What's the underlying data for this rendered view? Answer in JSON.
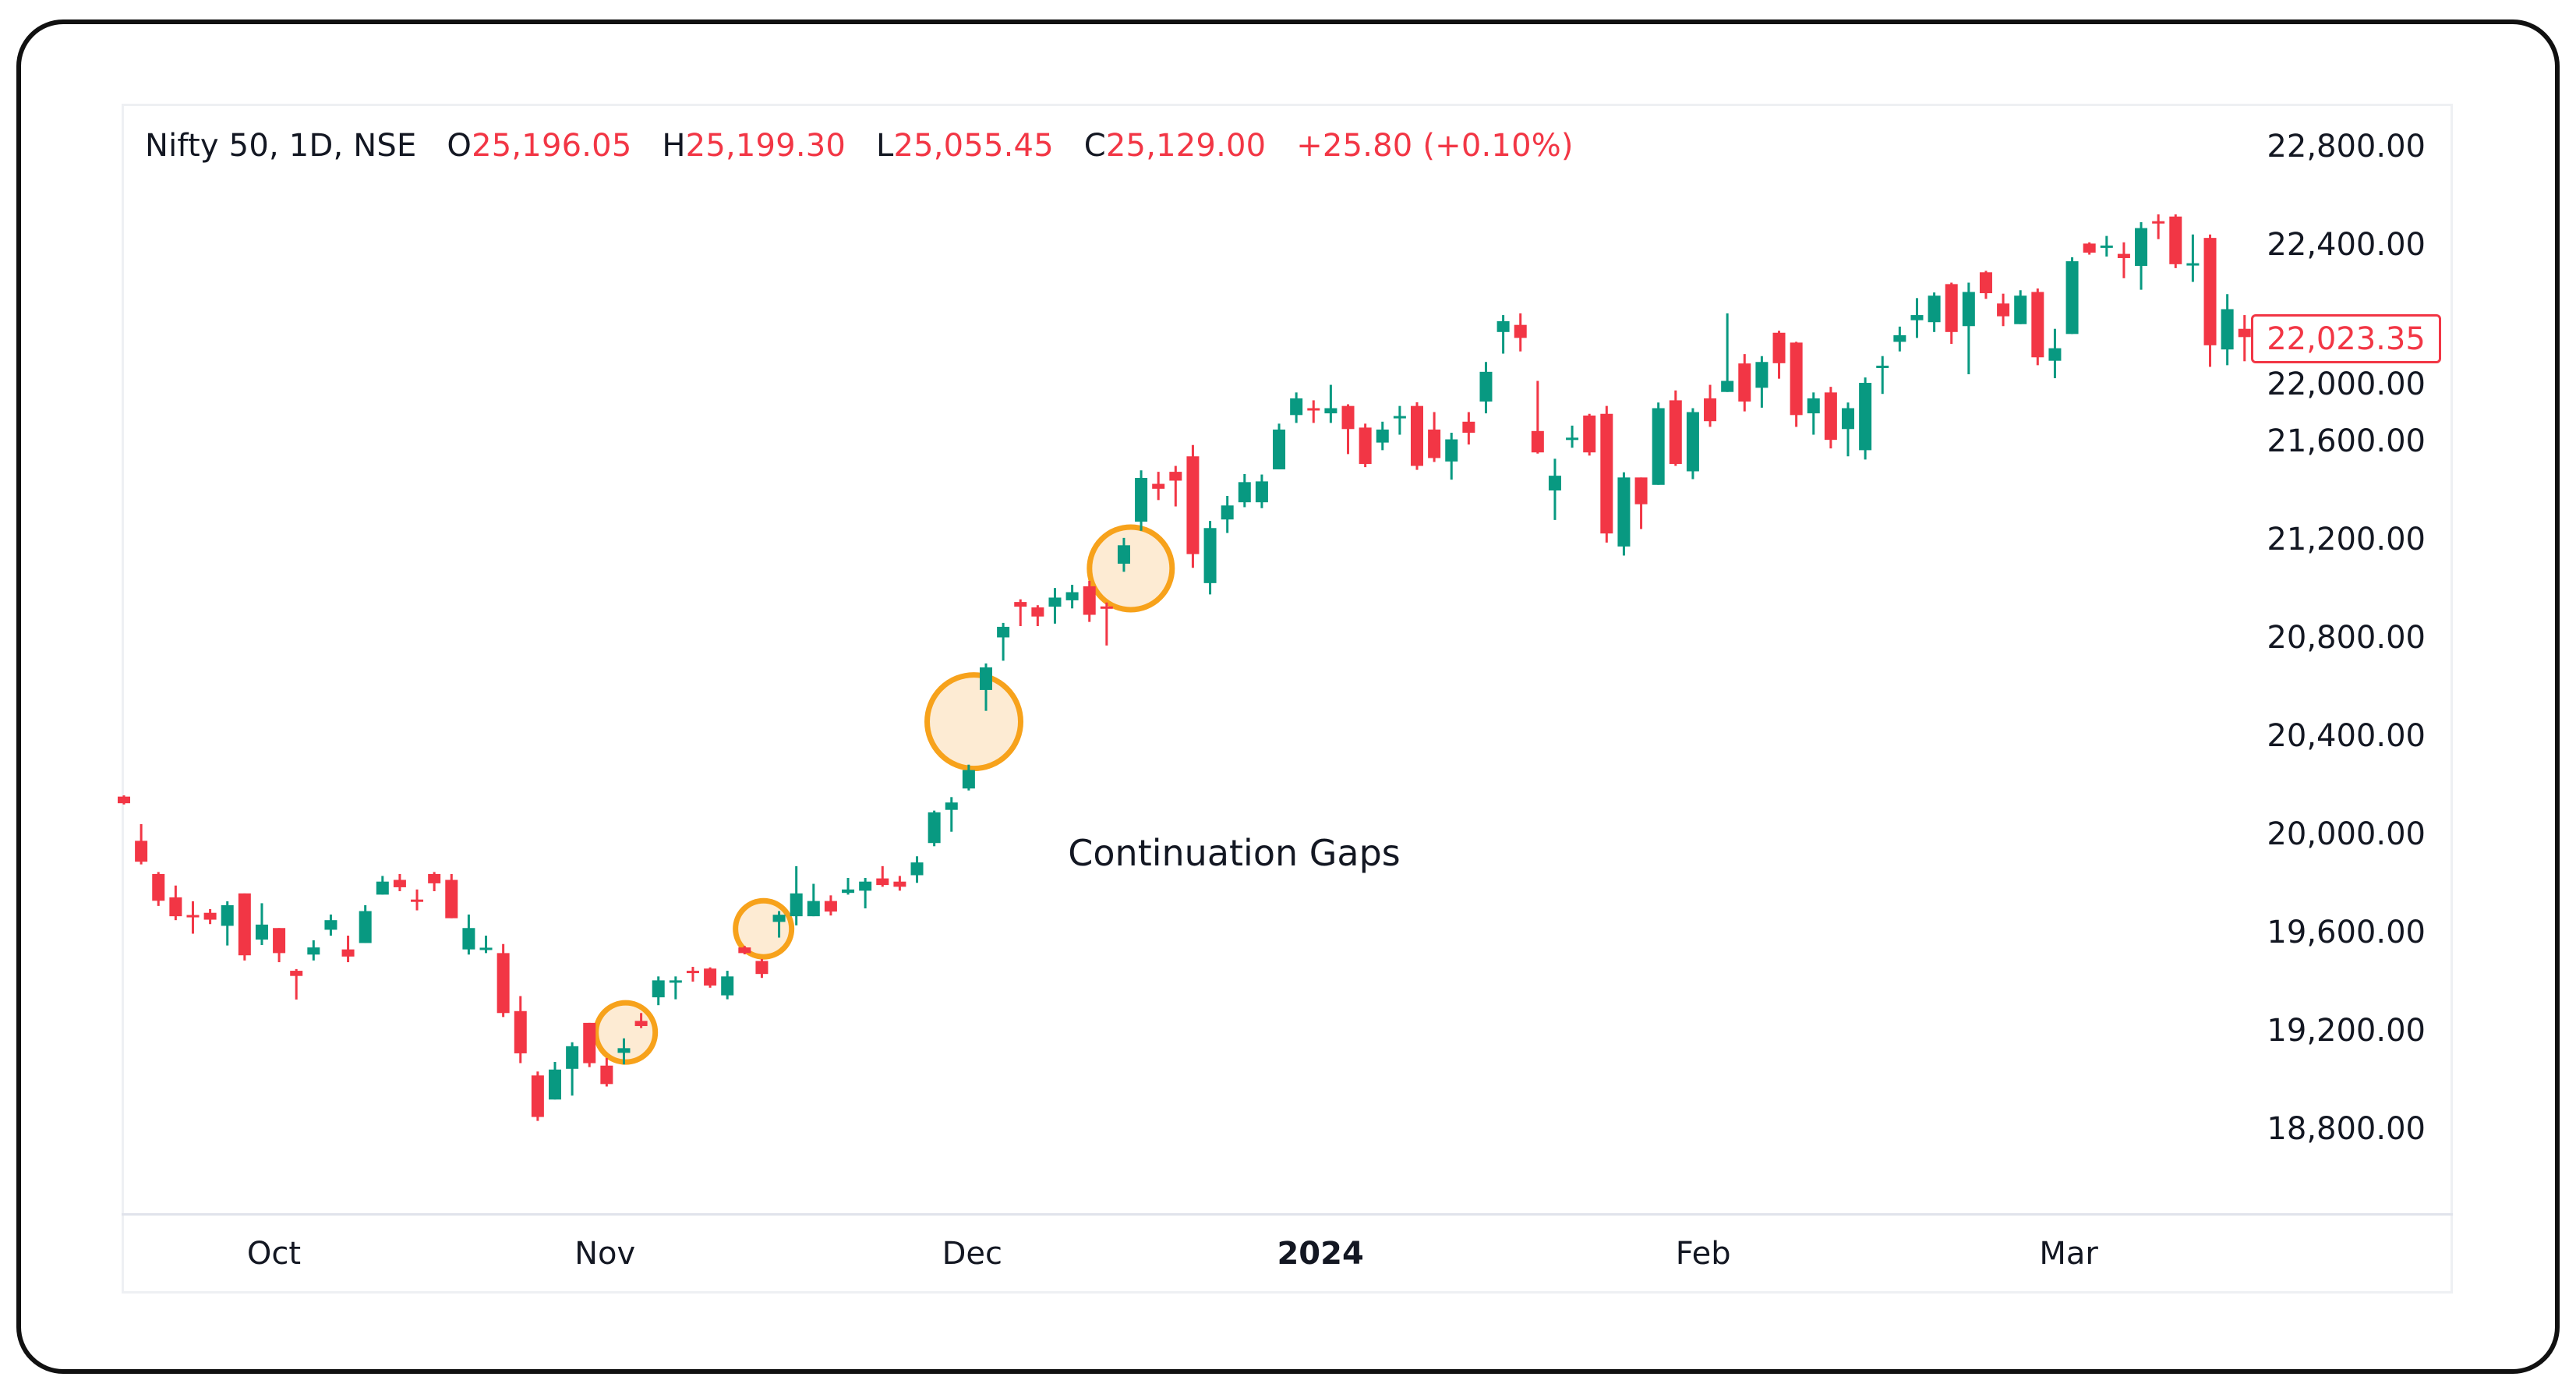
{
  "header": {
    "symbol": "Nifty 50, 1D, NSE",
    "open_label": "O",
    "open": "25,196.05",
    "high_label": "H",
    "high": "25,199.30",
    "low_label": "L",
    "low": "25,055.45",
    "close_label": "C",
    "close": "25,129.00",
    "change": "+25.80 (+0.10%)"
  },
  "last_price_label": "22,023.35",
  "colors": {
    "up": "#089981",
    "down": "#f23645",
    "highlight_fill": "#fdebd3",
    "highlight_stroke": "#f7a21b",
    "text": "#131722"
  },
  "chart_data": {
    "type": "candlestick",
    "title": "",
    "ylim": [
      18800,
      22800
    ],
    "y_ticks": [
      "22,800.00",
      "22,400.00",
      "22,000.00",
      "21,600.00",
      "21,200.00",
      "20,800.00",
      "20,400.00",
      "20,000.00",
      "19,600.00",
      "19,200.00",
      "18,800.00"
    ],
    "y_tick_values": [
      22800,
      22400,
      22000,
      21600,
      21200,
      20800,
      20400,
      20000,
      19600,
      19200,
      18800
    ],
    "x_ticks": [
      {
        "label": "Oct",
        "index": 8.7,
        "bold": false
      },
      {
        "label": "Nov",
        "index": 27.9,
        "bold": false
      },
      {
        "label": "Dec",
        "index": 49.2,
        "bold": false
      },
      {
        "label": "2024",
        "index": 69.4,
        "bold": true
      },
      {
        "label": "Feb",
        "index": 91.6,
        "bold": false
      },
      {
        "label": "Mar",
        "index": 112.8,
        "bold": false
      }
    ],
    "grid": false,
    "legend": "none",
    "ohlc_columns": [
      "open",
      "high",
      "low",
      "close"
    ],
    "candles": [
      [
        20153,
        20158,
        20121,
        20126
      ],
      [
        19973,
        20041,
        19877,
        19888
      ],
      [
        19838,
        19846,
        19708,
        19729
      ],
      [
        19743,
        19791,
        19650,
        19666
      ],
      [
        19671,
        19727,
        19595,
        19669
      ],
      [
        19680,
        19695,
        19634,
        19652
      ],
      [
        19627,
        19727,
        19547,
        19711
      ],
      [
        19759,
        19759,
        19486,
        19507
      ],
      [
        19571,
        19719,
        19549,
        19632
      ],
      [
        19618,
        19618,
        19479,
        19516
      ],
      [
        19444,
        19451,
        19327,
        19423
      ],
      [
        19510,
        19568,
        19486,
        19539
      ],
      [
        19611,
        19673,
        19587,
        19650
      ],
      [
        19531,
        19587,
        19479,
        19502
      ],
      [
        19557,
        19711,
        19557,
        19687
      ],
      [
        19754,
        19830,
        19754,
        19807
      ],
      [
        19814,
        19838,
        19768,
        19784
      ],
      [
        19734,
        19775,
        19690,
        19732
      ],
      [
        19838,
        19846,
        19768,
        19800
      ],
      [
        19814,
        19838,
        19658,
        19658
      ],
      [
        19531,
        19673,
        19510,
        19618
      ],
      [
        19536,
        19587,
        19516,
        19538
      ],
      [
        19516,
        19553,
        19256,
        19272
      ],
      [
        19280,
        19341,
        19068,
        19108
      ],
      [
        19018,
        19034,
        18833,
        18849
      ],
      [
        18920,
        19073,
        18920,
        19042
      ],
      [
        19045,
        19153,
        18936,
        19137
      ],
      [
        19232,
        19232,
        19052,
        19068
      ],
      [
        19058,
        19089,
        18973,
        18983
      ],
      [
        19110,
        19169,
        19063,
        19129
      ],
      [
        19240,
        19272,
        19211,
        19219
      ],
      [
        19336,
        19421,
        19304,
        19405
      ],
      [
        19400,
        19421,
        19328,
        19405
      ],
      [
        19444,
        19460,
        19400,
        19440
      ],
      [
        19453,
        19458,
        19375,
        19384
      ],
      [
        19344,
        19444,
        19328,
        19421
      ],
      [
        19539,
        19545,
        19511,
        19516
      ],
      [
        19484,
        19492,
        19415,
        19431
      ],
      [
        19643,
        19687,
        19579,
        19672
      ],
      [
        19666,
        19870,
        19629,
        19759
      ],
      [
        19666,
        19798,
        19666,
        19728
      ],
      [
        19728,
        19751,
        19669,
        19685
      ],
      [
        19761,
        19822,
        19754,
        19775
      ],
      [
        19770,
        19822,
        19698,
        19807
      ],
      [
        19820,
        19870,
        19786,
        19793
      ],
      [
        19807,
        19830,
        19770,
        19786
      ],
      [
        19833,
        19910,
        19802,
        19885
      ],
      [
        19964,
        20096,
        19951,
        20089
      ],
      [
        20099,
        20151,
        20010,
        20129
      ],
      [
        20186,
        20283,
        20178,
        20261
      ],
      [
        20587,
        20695,
        20502,
        20679
      ],
      [
        20801,
        20860,
        20706,
        20844
      ],
      [
        20945,
        20956,
        20847,
        20926
      ],
      [
        20923,
        20932,
        20847,
        20886
      ],
      [
        20926,
        21002,
        20857,
        20963
      ],
      [
        20952,
        21015,
        20919,
        20985
      ],
      [
        21009,
        21031,
        20864,
        20893
      ],
      [
        20927,
        20943,
        20768,
        20923
      ],
      [
        21101,
        21206,
        21068,
        21176
      ],
      [
        21272,
        21481,
        21235,
        21450
      ],
      [
        21426,
        21475,
        21360,
        21406
      ],
      [
        21475,
        21499,
        21334,
        21439
      ],
      [
        21538,
        21584,
        21084,
        21140
      ],
      [
        21022,
        21275,
        20976,
        21246
      ],
      [
        21281,
        21377,
        21226,
        21338
      ],
      [
        21351,
        21466,
        21331,
        21433
      ],
      [
        21351,
        21464,
        21327,
        21436
      ],
      [
        21485,
        21671,
        21485,
        21647
      ],
      [
        21706,
        21798,
        21674,
        21774
      ],
      [
        21734,
        21766,
        21674,
        21730
      ],
      [
        21713,
        21829,
        21674,
        21734
      ],
      [
        21743,
        21750,
        21547,
        21649
      ],
      [
        21655,
        21671,
        21494,
        21507
      ],
      [
        21594,
        21679,
        21563,
        21647
      ],
      [
        21698,
        21743,
        21626,
        21702
      ],
      [
        21743,
        21758,
        21483,
        21499
      ],
      [
        21647,
        21718,
        21515,
        21531
      ],
      [
        21517,
        21634,
        21443,
        21607
      ],
      [
        21679,
        21718,
        21586,
        21634
      ],
      [
        21761,
        21922,
        21713,
        21882
      ],
      [
        22044,
        22113,
        21956,
        22088
      ],
      [
        22073,
        22120,
        21965,
        22020
      ],
      [
        21641,
        21845,
        21549,
        21554
      ],
      [
        21399,
        21528,
        21279,
        21459
      ],
      [
        21610,
        21663,
        21573,
        21614
      ],
      [
        21704,
        21711,
        21541,
        21554
      ],
      [
        21711,
        21743,
        21187,
        21224
      ],
      [
        21171,
        21473,
        21134,
        21452
      ],
      [
        21452,
        21452,
        21242,
        21343
      ],
      [
        21422,
        21757,
        21422,
        21734
      ],
      [
        21766,
        21806,
        21499,
        21507
      ],
      [
        21477,
        21734,
        21445,
        21718
      ],
      [
        21774,
        21829,
        21658,
        21681
      ],
      [
        21800,
        22120,
        21800,
        21845
      ],
      [
        21916,
        21954,
        21721,
        21761
      ],
      [
        21817,
        21946,
        21736,
        21922
      ],
      [
        22041,
        22049,
        21854,
        21917
      ],
      [
        22001,
        22004,
        21658,
        21706
      ],
      [
        21713,
        21798,
        21626,
        21774
      ],
      [
        21798,
        21821,
        21570,
        21605
      ],
      [
        21649,
        21757,
        21538,
        21734
      ],
      [
        21563,
        21859,
        21525,
        21837
      ],
      [
        21903,
        21946,
        21792,
        21907
      ],
      [
        22004,
        22066,
        21965,
        22031
      ],
      [
        22092,
        22182,
        22020,
        22113
      ],
      [
        22084,
        22205,
        22044,
        22192
      ],
      [
        22239,
        22245,
        21996,
        22044
      ],
      [
        22068,
        22245,
        21872,
        22207
      ],
      [
        22287,
        22293,
        22179,
        22202
      ],
      [
        22160,
        22200,
        22068,
        22108
      ],
      [
        22076,
        22214,
        22076,
        22192
      ],
      [
        22207,
        22221,
        21909,
        21941
      ],
      [
        21927,
        22057,
        21856,
        21978
      ],
      [
        22036,
        22348,
        22036,
        22332
      ],
      [
        22404,
        22409,
        22359,
        22367
      ],
      [
        22391,
        22435,
        22351,
        22396
      ],
      [
        22362,
        22409,
        22263,
        22345
      ],
      [
        22313,
        22491,
        22216,
        22467
      ],
      [
        22495,
        22523,
        22422,
        22491
      ],
      [
        22514,
        22523,
        22304,
        22320
      ],
      [
        22320,
        22441,
        22248,
        22324
      ],
      [
        22427,
        22441,
        21902,
        21990
      ],
      [
        21973,
        22198,
        21909,
        22137
      ],
      [
        22057,
        22113,
        21925,
        22023.35
      ]
    ],
    "highlights": [
      {
        "index": 29.1,
        "price": 19193
      },
      {
        "index": 37.1,
        "price": 19615
      },
      {
        "index": 49.3,
        "price": 20458
      },
      {
        "index": 58.4,
        "price": 21082
      }
    ],
    "annotations": [
      {
        "text": "Continuation Gaps",
        "index": 64.4,
        "price": 19923
      }
    ]
  }
}
